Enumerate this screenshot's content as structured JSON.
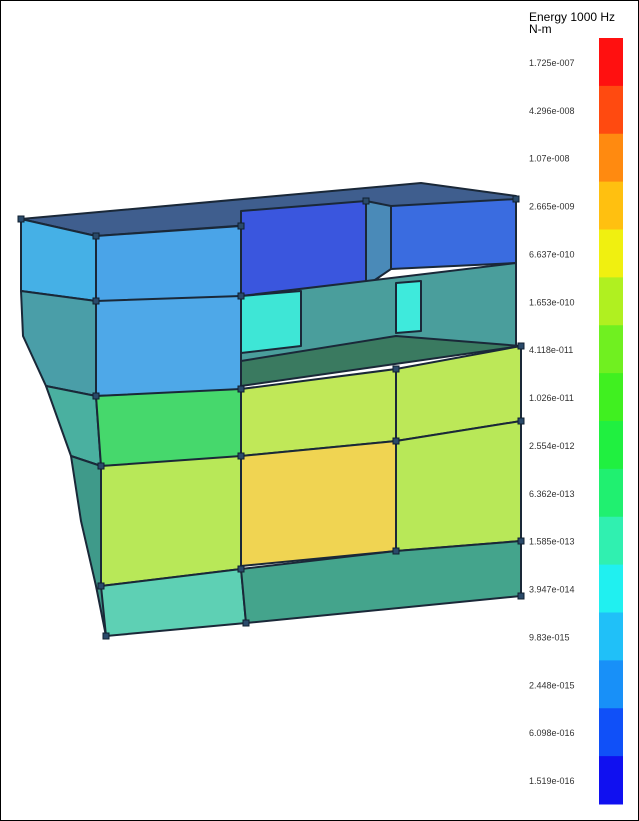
{
  "legend": {
    "title": "Energy 1000 Hz",
    "unit": "N-m",
    "labels": [
      "1.725e-007",
      "4.296e-008",
      "1.07e-008",
      "2.665e-009",
      "6.637e-010",
      "1.653e-010",
      "4.118e-011",
      "1.026e-011",
      "2.554e-012",
      "6.362e-013",
      "1.585e-013",
      "3.947e-014",
      "9.83e-015",
      "2.448e-015",
      "6.098e-016",
      "1.519e-016"
    ],
    "colors": [
      "#ff1010",
      "#ff4a10",
      "#ff8a10",
      "#ffc010",
      "#f0f010",
      "#b0f020",
      "#70f020",
      "#40f020",
      "#20f040",
      "#20f070",
      "#30f0b0",
      "#20f0f0",
      "#20c0f8",
      "#1890f8",
      "#1050f8",
      "#1010f0"
    ]
  }
}
